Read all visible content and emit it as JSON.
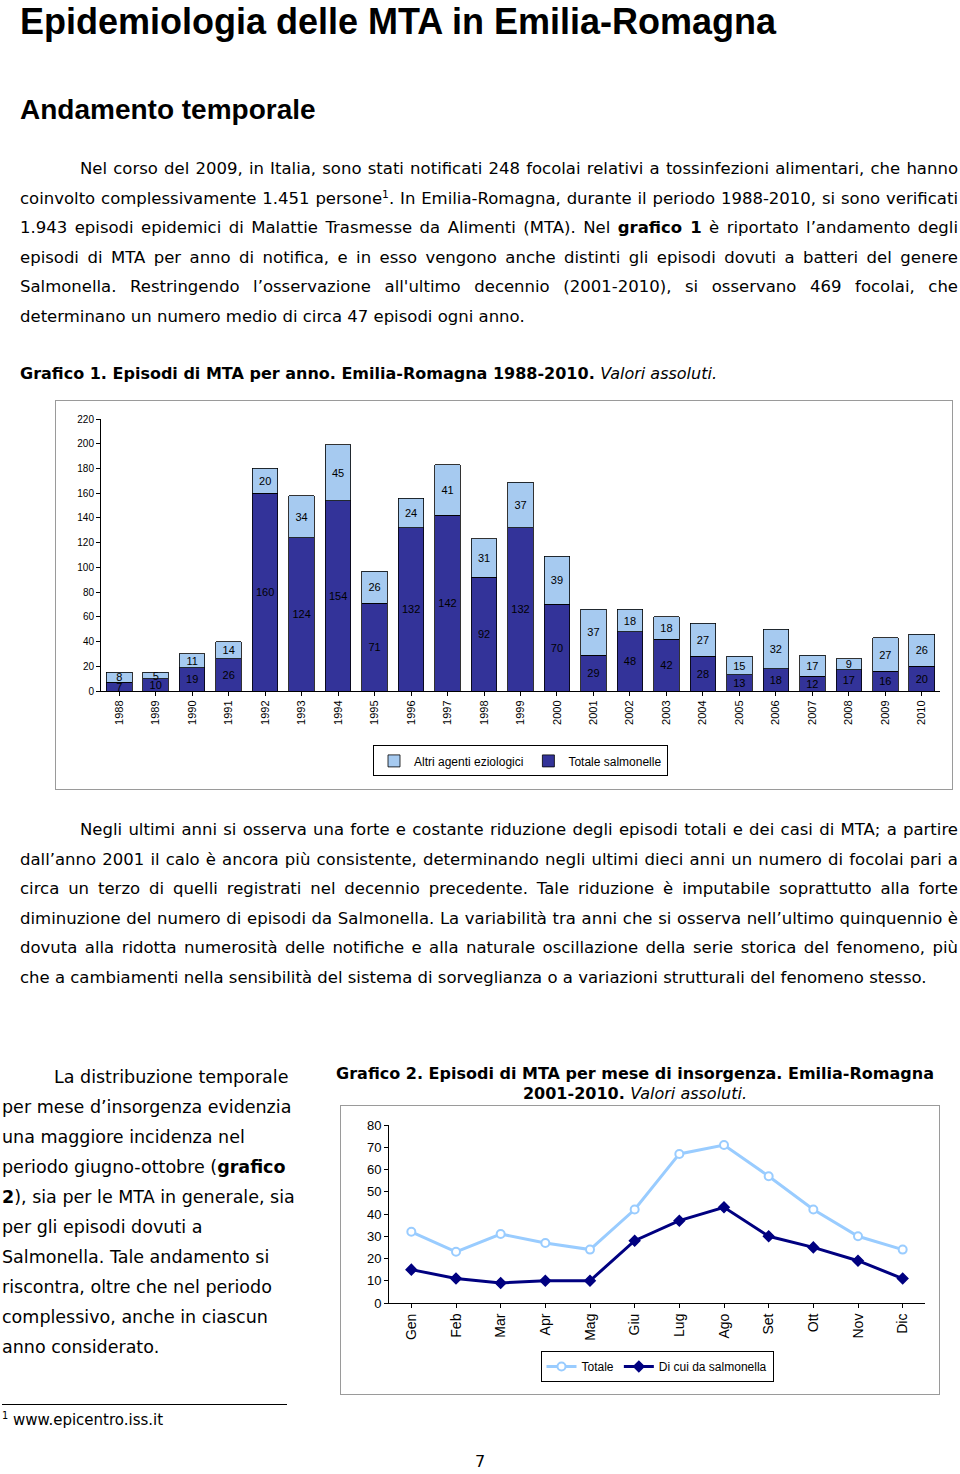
{
  "title": "Epidemiologia delle MTA in Emilia-Romagna",
  "section": "Andamento temporale",
  "intro": [
    {
      "text": "Nel corso del 2009, in Italia, sono stati notificati 248 focolai relativi a tossinfezioni alimentari, che hanno coinvolto complessivamente 1.451 persone"
    },
    {
      "text": "1",
      "style": "sup"
    },
    {
      "text": ". In Emilia-Romagna, durante il periodo 1988-2010, si sono verificati 1.943 episodi epidemici di Malattie Trasmesse da Alimenti (MTA). Nel "
    },
    {
      "text": "grafico 1",
      "style": "bold"
    },
    {
      "text": " è riportato l’andamento degli episodi di MTA per anno di notifica, e in esso vengono anche distinti gli episodi dovuti a batteri del genere Salmonella. Restringendo l’osservazione all'ultimo decennio (2001-2010), si osservano 469 focolai, che determinano un numero medio di circa 47 episodi ogni anno."
    }
  ],
  "analysis": [
    {
      "text": "Negli ultimi anni si osserva una forte e costante riduzione degli episodi totali e dei casi di MTA; a partire dall’anno 2001 il calo è ancora più consistente, determinando negli ultimi dieci anni un numero di focolai pari a circa un terzo di quelli registrati nel decennio precedente. Tale riduzione è imputabile soprattutto alla forte diminuzione del numero di episodi da Salmonella. La variabilità tra anni che si osserva nell’ultimo quinquennio è dovuta alla ridotta numerosità delle notifiche e alla naturale oscillazione della serie storica del fenomeno, più che a cambiamenti nella sensibilità del sistema di sorveglianza o a variazioni strutturali del fenomeno stesso."
    }
  ],
  "monthly_text": [
    {
      "text": "La distribuzione temporale per mese d’insorgenza evidenzia una maggiore incidenza nel periodo giugno-ottobre ("
    },
    {
      "text": "grafico 2",
      "style": "bold"
    },
    {
      "text": "), sia per le MTA in generale, sia per gli episodi dovuti a Salmonella. Tale andamento si riscontra, oltre che nel periodo complessivo, anche in ciascun anno considerato."
    }
  ],
  "chart_data": [
    {
      "type": "bar",
      "title": "Grafico 1. Episodi di MTA per anno. Emilia-Romagna 1988-2010.",
      "subtitle": "Valori assoluti.",
      "stacked": true,
      "data_labels": true,
      "grid": false,
      "legend": "bottom",
      "categories": [
        "1988",
        "1989",
        "1990",
        "1991",
        "1992",
        "1993",
        "1994",
        "1995",
        "1996",
        "1997",
        "1998",
        "1999",
        "2000",
        "2001",
        "2002",
        "2003",
        "2004",
        "2005",
        "2006",
        "2007",
        "2008",
        "2009",
        "2010"
      ],
      "series": [
        {
          "name": "Totale salmonelle",
          "color": "#333399",
          "values": [
            7,
            10,
            19,
            26,
            160,
            124,
            154,
            71,
            132,
            142,
            92,
            132,
            70,
            29,
            48,
            42,
            28,
            13,
            18,
            12,
            17,
            16,
            20
          ]
        },
        {
          "name": "Altri agenti eziologici",
          "color": "#a6caf0",
          "values": [
            8,
            5,
            11,
            14,
            20,
            34,
            45,
            26,
            24,
            41,
            31,
            37,
            39,
            37,
            18,
            18,
            27,
            15,
            32,
            17,
            9,
            27,
            26
          ]
        }
      ],
      "ylim": [
        0,
        220
      ],
      "yticks": [
        0,
        20,
        40,
        60,
        80,
        100,
        120,
        140,
        160,
        180,
        200,
        220
      ]
    },
    {
      "type": "line",
      "title": "Grafico 2. Episodi di MTA per mese di insorgenza. Emilia-Romagna 2001-2010.",
      "subtitle": "Valori assoluti.",
      "grid": false,
      "legend": "bottom",
      "categories": [
        "Gen",
        "Feb",
        "Mar",
        "Apr",
        "Mag",
        "Giu",
        "Lug",
        "Ago",
        "Set",
        "Ott",
        "Nov",
        "Dic"
      ],
      "series": [
        {
          "name": "Totale",
          "color": "#99ccff",
          "marker": "circle",
          "values": [
            32,
            23,
            31,
            27,
            24,
            42,
            67,
            71,
            57,
            42,
            30,
            24
          ]
        },
        {
          "name": "Di cui da salmonella",
          "color": "#000080",
          "marker": "diamond",
          "values": [
            15,
            11,
            9,
            10,
            10,
            28,
            37,
            43,
            30,
            25,
            19,
            11
          ]
        }
      ],
      "ylim": [
        0,
        80
      ],
      "yticks": [
        0,
        10,
        20,
        30,
        40,
        50,
        60,
        70,
        80
      ]
    }
  ],
  "footnote": {
    "mark": "1",
    "text": "www.epicentro.iss.it"
  },
  "page_number": "7"
}
